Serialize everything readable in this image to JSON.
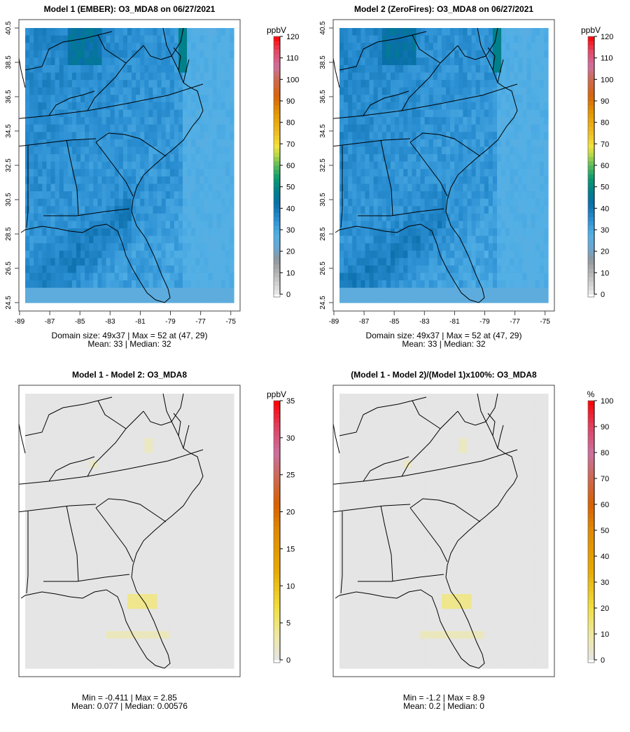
{
  "panels": [
    {
      "title": "Model 1 (EMBER): O3_MDA8 on 06/27/2021",
      "units": "ppbV",
      "scale": "conc",
      "cb_max": 120,
      "cb_ticks": [
        "0",
        "10",
        "20",
        "30",
        "40",
        "50",
        "60",
        "70",
        "80",
        "90",
        "100",
        "110",
        "120"
      ],
      "field": "model",
      "stats": [
        "Domain size: 49x37 | Max = 52 at (47, 29)",
        "Mean: 33 |  Median: 32"
      ],
      "show_axes": true
    },
    {
      "title": "Model 2 (ZeroFires): O3_MDA8 on 06/27/2021",
      "units": "ppbV",
      "scale": "conc",
      "cb_max": 120,
      "cb_ticks": [
        "0",
        "10",
        "20",
        "30",
        "40",
        "50",
        "60",
        "70",
        "80",
        "90",
        "100",
        "110",
        "120"
      ],
      "field": "model",
      "stats": [
        "Domain size: 49x37 | Max = 52 at (47, 29)",
        "Mean: 33 |  Median: 32"
      ],
      "show_axes": true
    },
    {
      "title": "Model 1 - Model 2: O3_MDA8",
      "units": "ppbV",
      "scale": "diff",
      "cb_max": 35,
      "cb_ticks": [
        "0",
        "5",
        "10",
        "15",
        "20",
        "25",
        "30",
        "35"
      ],
      "field": "diff",
      "stats": [
        "Min = -0.411 | Max = 2.85",
        "Mean: 0.077 |  Median: 0.00576"
      ],
      "show_axes": false
    },
    {
      "title": "(Model 1 - Model 2)/(Model 1)x100%: O3_MDA8",
      "units": "%",
      "scale": "diff",
      "cb_max": 100,
      "cb_ticks": [
        "0",
        "10",
        "20",
        "30",
        "40",
        "50",
        "60",
        "70",
        "80",
        "90",
        "100"
      ],
      "field": "diff",
      "stats": [
        "Min = -1.2 | Max = 8.9",
        "Mean: 0.2 |  Median: 0"
      ],
      "show_axes": false
    }
  ],
  "axes": {
    "y_ticks": [
      "40.5",
      "38.5",
      "36.5",
      "34.5",
      "32.5",
      "30.5",
      "28.5",
      "26.5",
      "24.5"
    ],
    "x_ticks": [
      "-89",
      "-87",
      "-85",
      "-83",
      "-81",
      "-79",
      "-77",
      "-75"
    ]
  },
  "grid": {
    "cols": 49,
    "rows": 37
  }
}
